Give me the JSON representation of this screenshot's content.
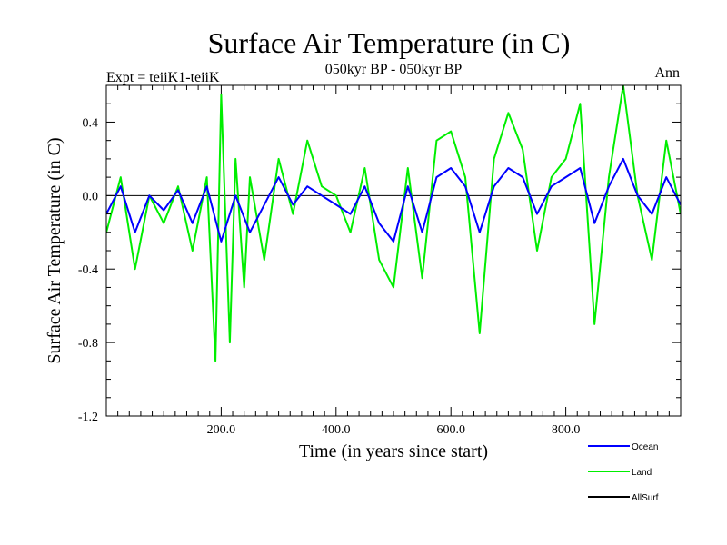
{
  "chart_data": {
    "type": "line",
    "title": "Surface Air Temperature (in C)",
    "subtitle": "050kyr BP - 050kyr BP",
    "left_label": "Expt = teiiK1-teiiK",
    "right_label": "Ann",
    "xlabel": "Time (in years since start)",
    "ylabel": "Surface Air Temperature (in C)",
    "xlim": [
      0,
      1000
    ],
    "ylim": [
      -1.2,
      0.6
    ],
    "x_ticks": [
      200,
      400,
      600,
      800
    ],
    "x_tick_labels": [
      "200.0",
      "400.0",
      "600.0",
      "800.0"
    ],
    "y_ticks": [
      -1.2,
      -0.8,
      -0.4,
      0.0,
      0.4
    ],
    "y_tick_labels": [
      "-1.2",
      "-0.8",
      "-0.4",
      "0.0",
      "0.4"
    ],
    "grid": false,
    "legend_position": "bottom-right",
    "series": [
      {
        "name": "Land",
        "color": "#00ee00",
        "x": [
          0,
          25,
          50,
          75,
          100,
          125,
          150,
          175,
          190,
          200,
          215,
          225,
          240,
          250,
          275,
          300,
          325,
          350,
          375,
          400,
          425,
          450,
          475,
          500,
          525,
          550,
          575,
          600,
          625,
          650,
          675,
          700,
          725,
          750,
          775,
          800,
          825,
          850,
          875,
          900,
          925,
          950,
          975,
          1000
        ],
        "values": [
          -0.2,
          0.1,
          -0.4,
          0.0,
          -0.15,
          0.05,
          -0.3,
          0.1,
          -0.9,
          0.55,
          -0.8,
          0.2,
          -0.5,
          0.1,
          -0.35,
          0.2,
          -0.1,
          0.3,
          0.05,
          0.0,
          -0.2,
          0.15,
          -0.35,
          -0.5,
          0.15,
          -0.45,
          0.3,
          0.35,
          0.1,
          -0.75,
          0.2,
          0.45,
          0.25,
          -0.3,
          0.1,
          0.2,
          0.5,
          -0.7,
          0.1,
          0.6,
          0.0,
          -0.35,
          0.3,
          -0.1
        ]
      },
      {
        "name": "Ocean",
        "color": "#0000ff",
        "x": [
          0,
          25,
          50,
          75,
          100,
          125,
          150,
          175,
          200,
          225,
          250,
          275,
          300,
          325,
          350,
          375,
          400,
          425,
          450,
          475,
          500,
          525,
          550,
          575,
          600,
          625,
          650,
          675,
          700,
          725,
          750,
          775,
          800,
          825,
          850,
          875,
          900,
          925,
          950,
          975,
          1000
        ],
        "values": [
          -0.1,
          0.05,
          -0.2,
          0.0,
          -0.08,
          0.03,
          -0.15,
          0.05,
          -0.25,
          0.0,
          -0.2,
          -0.05,
          0.1,
          -0.05,
          0.05,
          0.0,
          -0.05,
          -0.1,
          0.05,
          -0.15,
          -0.25,
          0.05,
          -0.2,
          0.1,
          0.15,
          0.05,
          -0.2,
          0.05,
          0.15,
          0.1,
          -0.1,
          0.05,
          0.1,
          0.15,
          -0.15,
          0.05,
          0.2,
          0.0,
          -0.1,
          0.1,
          -0.05
        ]
      },
      {
        "name": "AllSurf",
        "color": "#000000",
        "x": [],
        "values": []
      }
    ]
  }
}
